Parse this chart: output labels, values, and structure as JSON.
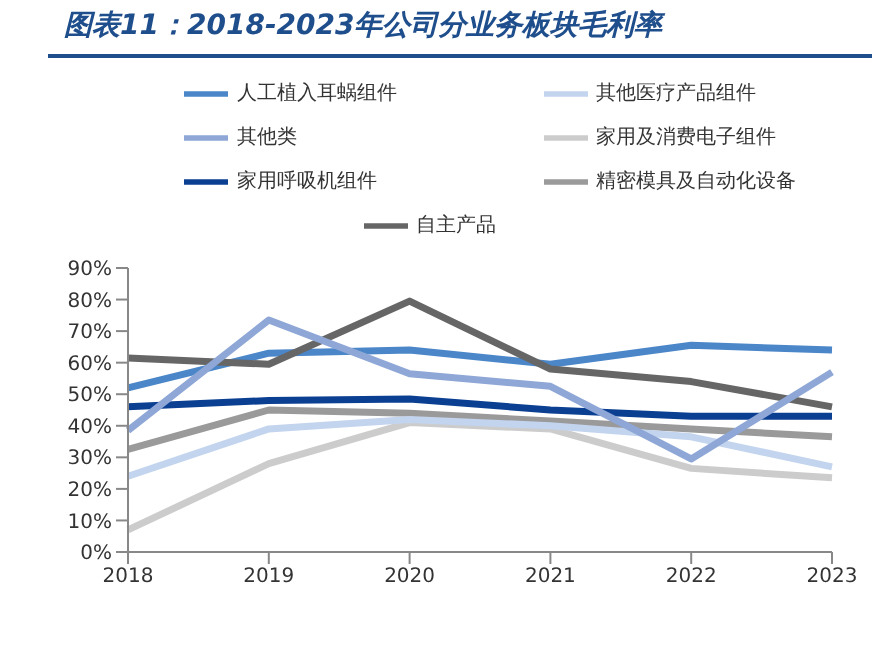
{
  "chart_data": {
    "type": "line",
    "title": "图表11：2018-2023年公司分业务板块毛利率",
    "categories": [
      "2018",
      "2019",
      "2020",
      "2021",
      "2022",
      "2023"
    ],
    "series": [
      {
        "name": "家用呼吸机组件",
        "color": "#0b3f92",
        "values": [
          46,
          48,
          48.5,
          45,
          43,
          43
        ]
      },
      {
        "name": "家用及消费电子组件",
        "color": "#cccccc",
        "values": [
          7,
          28,
          41,
          39,
          26.5,
          23.5
        ]
      },
      {
        "name": "人工植入耳蜗组件",
        "color": "#4a86c8",
        "values": [
          52,
          63,
          64,
          59.5,
          65.5,
          64
        ]
      },
      {
        "name": "精密模具及自动化设备",
        "color": "#9a9a9a",
        "values": [
          32.5,
          45,
          44,
          41.5,
          39,
          36.5
        ]
      },
      {
        "name": "其他医疗产品组件",
        "color": "#c3d4ee",
        "values": [
          24,
          39,
          42,
          40,
          36.5,
          27
        ]
      },
      {
        "name": "自主产品",
        "color": "#666666",
        "values": [
          61.5,
          59.5,
          79.5,
          58,
          54,
          46
        ]
      },
      {
        "name": "其他类",
        "color": "#8ea7d6",
        "values": [
          38.5,
          73.5,
          56.5,
          52.5,
          29.5,
          57
        ]
      }
    ],
    "ylim": [
      0,
      90
    ],
    "yticks": [
      {
        "value": 0,
        "label": "0%"
      },
      {
        "value": 10,
        "label": "10%"
      },
      {
        "value": 20,
        "label": "20%"
      },
      {
        "value": 30,
        "label": "30%"
      },
      {
        "value": 40,
        "label": "40%"
      },
      {
        "value": 50,
        "label": "50%"
      },
      {
        "value": 60,
        "label": "60%"
      },
      {
        "value": 70,
        "label": "70%"
      },
      {
        "value": 80,
        "label": "80%"
      },
      {
        "value": 90,
        "label": "90%"
      }
    ],
    "grid": false,
    "legend": "top",
    "marker": "none",
    "line_style": "solid"
  }
}
